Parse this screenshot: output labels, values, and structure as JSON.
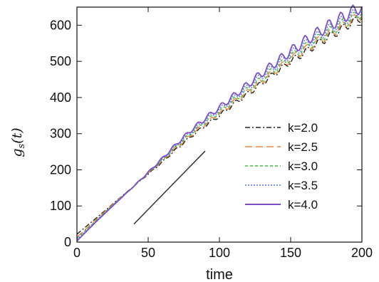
{
  "chart_data": {
    "type": "line",
    "xlabel": "time",
    "ylabel": "g_s(t)",
    "ylabel_main": "g",
    "ylabel_sub": "s",
    "ylabel_args": "(t)",
    "xlim": [
      0,
      200
    ],
    "ylim": [
      0,
      650
    ],
    "xticks": [
      0,
      50,
      100,
      150,
      200
    ],
    "yticks": [
      0,
      100,
      200,
      300,
      400,
      500,
      600
    ],
    "grid": false,
    "legend_position": "right",
    "x": [
      0,
      10,
      20,
      30,
      40,
      50,
      60,
      70,
      80,
      90,
      100,
      110,
      120,
      130,
      140,
      150,
      160,
      170,
      180,
      190,
      200
    ],
    "series": [
      {
        "name": "k=2.0",
        "color": "#222222",
        "dash": "7 3 2 3",
        "width": 1.4,
        "values": [
          22,
          55,
          88,
          122,
          155,
          188,
          222,
          258,
          292,
          322,
          350,
          382,
          410,
          440,
          470,
          500,
          525,
          552,
          575,
          600,
          622
        ]
      },
      {
        "name": "k=2.5",
        "color": "#e8873a",
        "dash": "10 5",
        "width": 1.4,
        "values": [
          14,
          50,
          86,
          121,
          155,
          190,
          225,
          262,
          296,
          327,
          355,
          387,
          416,
          446,
          476,
          506,
          532,
          558,
          582,
          606,
          628
        ]
      },
      {
        "name": "k=3.0",
        "color": "#3dbb3d",
        "dash": "4 3",
        "width": 1.4,
        "values": [
          10,
          47,
          84,
          120,
          155,
          191,
          227,
          265,
          300,
          332,
          360,
          392,
          422,
          452,
          482,
          512,
          538,
          564,
          588,
          612,
          635
        ]
      },
      {
        "name": "k=3.5",
        "color": "#6f82e6",
        "dash": "2 2",
        "width": 1.6,
        "values": [
          7,
          45,
          82,
          119,
          155,
          192,
          229,
          268,
          304,
          337,
          366,
          398,
          429,
          460,
          490,
          520,
          546,
          572,
          596,
          620,
          642
        ]
      },
      {
        "name": "k=4.0",
        "color": "#7b4fc9",
        "dash": "",
        "width": 1.8,
        "values": [
          3,
          43,
          81,
          118,
          155,
          193,
          232,
          272,
          309,
          342,
          372,
          404,
          436,
          468,
          498,
          528,
          556,
          582,
          606,
          630,
          652
        ]
      }
    ],
    "reference_line": {
      "x": [
        40,
        90
      ],
      "y": [
        50,
        252
      ],
      "color": "#333333"
    }
  }
}
